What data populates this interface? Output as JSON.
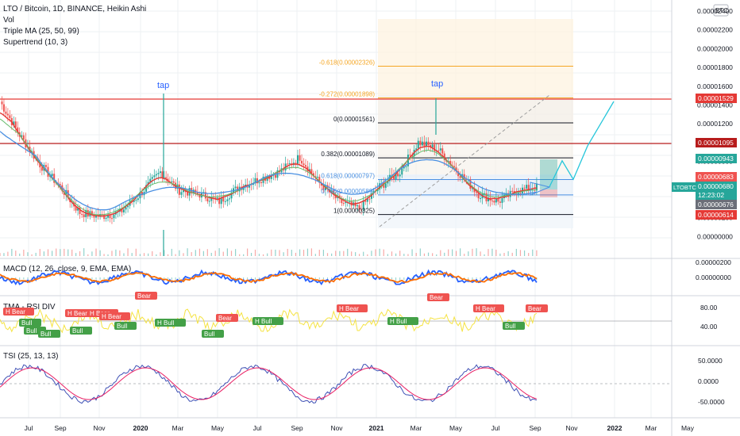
{
  "header": {
    "symbol_line": "LTO / Bitcoin, 1D, BINANCE, Heikin Ashi",
    "indicators": [
      "Vol",
      "Triple MA (25, 50, 99)",
      "Supertrend (10, 3)"
    ],
    "currency_badge": "BTC"
  },
  "panes": {
    "macd_label": "MACD (12, 26, close, 9, EMA, EMA)",
    "rsi_label": "TMA - RSI DIV",
    "tsi_label": "TSI (25, 13, 13)"
  },
  "colors": {
    "up": "#26a69a",
    "down": "#ef5350",
    "ma_red": "#e53935",
    "ma_blue": "#4a90e2",
    "ma_green": "#66bb6a",
    "fib_orange": "#f5a623",
    "rsi_yellow": "#f5e342",
    "macd_blue": "#2962ff",
    "macd_orange": "#ff6d00",
    "tsi_blue": "#3f51b5",
    "tsi_red": "#e91e63",
    "grid": "#eef0f3",
    "line_red": "#e53935",
    "line_darkred": "#b71c1c"
  },
  "annotations": {
    "tap1": "tap",
    "tap2": "tap",
    "fibs": [
      {
        "label": "-0.618(0.00002326)",
        "price": 2.326e-05,
        "color": "#f5a623"
      },
      {
        "label": "-0.272(0.00001898)",
        "price": 1.898e-05,
        "color": "#f5a623"
      },
      {
        "label": "0(0.00001561)",
        "price": 1.561e-05,
        "color": "#131722"
      },
      {
        "label": "0.382(0.00001089)",
        "price": 1.089e-05,
        "color": "#131722"
      },
      {
        "label": "0.618(0.00000797)",
        "price": 7.97e-06,
        "color": "#4a90e2"
      },
      {
        "label": "0.786(0.00000589)",
        "price": 5.89e-06,
        "color": "#4a90e2"
      },
      {
        "label": "1(0.00000325)",
        "price": 3.25e-06,
        "color": "#131722"
      }
    ],
    "rsi_tags": [
      {
        "text": "H Bear",
        "kind": "bear"
      },
      {
        "text": "Bull",
        "kind": "bull"
      },
      {
        "text": "Bull",
        "kind": "bull"
      },
      {
        "text": "H Bear",
        "kind": "bear"
      },
      {
        "text": "Bull",
        "kind": "bull"
      },
      {
        "text": "H Bear",
        "kind": "bear"
      },
      {
        "text": "Bull",
        "kind": "bull"
      },
      {
        "text": "H Bear",
        "kind": "bear"
      },
      {
        "text": "Bull",
        "kind": "bull"
      },
      {
        "text": "Bear",
        "kind": "bear"
      },
      {
        "text": "H Bull",
        "kind": "bull"
      },
      {
        "text": "Bull",
        "kind": "bull"
      },
      {
        "text": "H Bull",
        "kind": "bull"
      },
      {
        "text": "Bear",
        "kind": "bear"
      },
      {
        "text": "H Bear",
        "kind": "bear"
      },
      {
        "text": "H Bull",
        "kind": "bull"
      },
      {
        "text": "Bear",
        "kind": "bear"
      },
      {
        "text": "H Bear",
        "kind": "bear"
      },
      {
        "text": "Bull",
        "kind": "bull"
      },
      {
        "text": "Bear",
        "kind": "bear"
      }
    ]
  },
  "price_axis": {
    "ticks": [
      "0.00002400",
      "0.00002200",
      "0.00002000",
      "0.00001800",
      "0.00001600",
      "0.00001400",
      "0.00001200",
      "0.00001000",
      "0.00000800",
      "0.00000600",
      "0.00000400",
      "0.00000200",
      "0.00000000"
    ],
    "badges": [
      {
        "text": "0.00001529",
        "price": 1.529e-05,
        "bg": "#e53935"
      },
      {
        "text": "0.00001095",
        "price": 1.095e-05,
        "bg": "#b71c1c"
      },
      {
        "text": "0.00000943",
        "price": 9.43e-06,
        "bg": "#26a69a"
      },
      {
        "text": "0.00000683",
        "price": 6.83e-06,
        "bg": "#ef5350"
      },
      {
        "text": "0.00000680",
        "price": 6.8e-06,
        "bg": "#26a69a"
      },
      {
        "text": "12:23:02",
        "price": 6.56e-06,
        "bg": "#26a69a"
      },
      {
        "text": "0.00000676",
        "price": 6.3e-06,
        "bg": "#6b6e78"
      },
      {
        "text": "0.00000614",
        "price": 6e-06,
        "bg": "#e53935"
      }
    ],
    "symbol_badge": "LTOBTC"
  },
  "macd_axis": {
    "ticks": [
      "0.00000200",
      "0.00000000"
    ]
  },
  "rsi_axis": {
    "ticks": [
      "80.00",
      "40.00"
    ]
  },
  "tsi_axis": {
    "ticks": [
      "50.0000",
      "0.0000",
      "-50.0000"
    ]
  },
  "time_axis": {
    "labels": [
      "Jul",
      "Sep",
      "Nov",
      "2020",
      "Mar",
      "May",
      "Jul",
      "Sep",
      "Nov",
      "2021",
      "Mar",
      "May",
      "Jul",
      "Sep",
      "Nov",
      "2022",
      "Mar",
      "May"
    ],
    "bold": [
      "2020",
      "2021",
      "2022"
    ]
  },
  "chart_data": {
    "type": "candlestick",
    "instrument": "LTO / Bitcoin",
    "interval": "1D",
    "exchange": "BINANCE",
    "style": "Heikin Ashi",
    "ylim": [
      0,
      2.5e-05
    ],
    "key_levels": [
      1.529e-05,
      1.095e-05,
      9.43e-06,
      6.83e-06,
      6.8e-06,
      6.76e-06,
      6.14e-06
    ],
    "approx_path": [
      {
        "t": "2019-06",
        "price": 1.85e-05
      },
      {
        "t": "2019-07",
        "price": 1.4e-05
      },
      {
        "t": "2019-08",
        "price": 1e-05
      },
      {
        "t": "2019-09",
        "price": 7e-06
      },
      {
        "t": "2019-10",
        "price": 3.5e-06
      },
      {
        "t": "2019-11",
        "price": 3e-06
      },
      {
        "t": "2019-12",
        "price": 3.5e-06
      },
      {
        "t": "2020-01",
        "price": 6e-06
      },
      {
        "t": "2020-02",
        "price": 9e-06
      },
      {
        "t": "2020-03",
        "price": 6.5e-06
      },
      {
        "t": "2020-04",
        "price": 6e-06
      },
      {
        "t": "2020-05",
        "price": 5e-06
      },
      {
        "t": "2020-06",
        "price": 7e-06
      },
      {
        "t": "2020-07",
        "price": 8e-06
      },
      {
        "t": "2020-08",
        "price": 9e-06
      },
      {
        "t": "2020-09",
        "price": 1.1e-05
      },
      {
        "t": "2020-10",
        "price": 7.5e-06
      },
      {
        "t": "2020-11",
        "price": 5e-06
      },
      {
        "t": "2020-12",
        "price": 4e-06
      },
      {
        "t": "2021-01",
        "price": 7e-06
      },
      {
        "t": "2021-02",
        "price": 9e-06
      },
      {
        "t": "2021-03",
        "price": 1.3e-05
      },
      {
        "t": "2021-04",
        "price": 1.2e-05
      },
      {
        "t": "2021-05",
        "price": 9e-06
      },
      {
        "t": "2021-06",
        "price": 6e-06
      },
      {
        "t": "2021-07",
        "price": 5e-06
      },
      {
        "t": "2021-08",
        "price": 6.5e-06
      },
      {
        "t": "2021-09",
        "price": 7e-06
      }
    ],
    "projection": [
      {
        "t": "2021-09",
        "price": 7e-06
      },
      {
        "t": "2021-10",
        "price": 1.05e-05
      },
      {
        "t": "2021-10",
        "price": 8e-06
      },
      {
        "t": "2021-11",
        "price": 1.25e-05
      },
      {
        "t": "2021-12",
        "price": 1.85e-05
      }
    ]
  }
}
